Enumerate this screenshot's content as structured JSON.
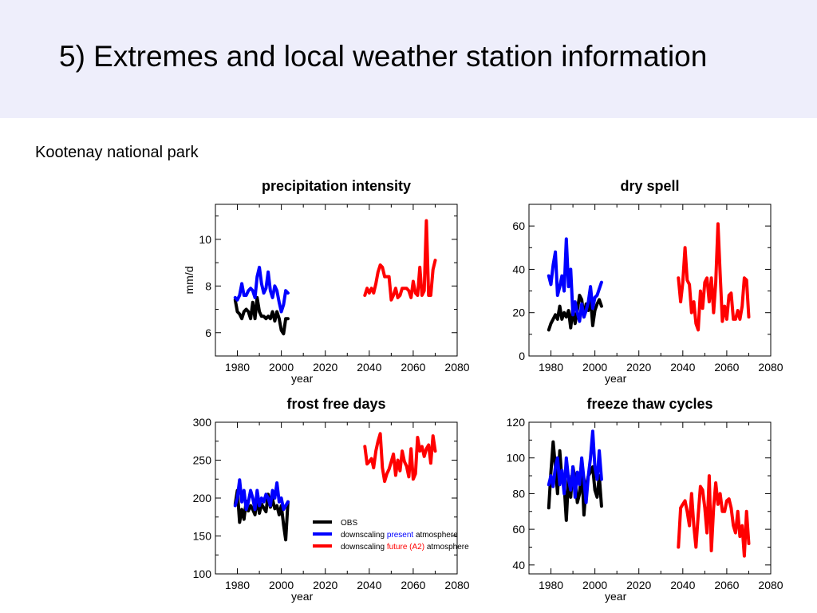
{
  "slide": {
    "title": "5) Extremes and local weather station information",
    "subtitle": "Kootenay national park"
  },
  "colors": {
    "header_bg": "#eeeefb",
    "obs": "#000000",
    "present": "#0000ff",
    "future": "#ff0000"
  },
  "legend": {
    "items": [
      {
        "parts": [
          {
            "text": "OBS",
            "color": "#000000"
          }
        ],
        "color": "#000000"
      },
      {
        "parts": [
          {
            "text": "downscaling ",
            "color": "#000000"
          },
          {
            "text": "present",
            "color": "#0000ff"
          },
          {
            "text": " atmosphere",
            "color": "#000000"
          }
        ],
        "color": "#0000ff"
      },
      {
        "parts": [
          {
            "text": "downscaling ",
            "color": "#000000"
          },
          {
            "text": "future (A2)",
            "color": "#ff0000"
          },
          {
            "text": " atmosphere",
            "color": "#000000"
          }
        ],
        "color": "#ff0000"
      }
    ]
  },
  "chart_data": [
    {
      "type": "line",
      "title": "precipitation intensity",
      "xlabel": "year",
      "ylabel": "mm/d",
      "xlim": [
        1970,
        2080
      ],
      "ylim": [
        5.0,
        11.5
      ],
      "xticks": [
        1980,
        2000,
        2020,
        2040,
        2060,
        2080
      ],
      "yticks": [
        6,
        8,
        10
      ],
      "series": [
        {
          "key": "obs",
          "color": "#000000",
          "x": [
            1979,
            1980,
            1981,
            1982,
            1983,
            1984,
            1985,
            1986,
            1987,
            1988,
            1989,
            1990,
            1991,
            1992,
            1993,
            1994,
            1995,
            1996,
            1997,
            1998,
            1999,
            2000,
            2001,
            2002,
            2003
          ],
          "y": [
            7.4,
            6.9,
            6.8,
            6.6,
            6.9,
            7.0,
            6.9,
            6.6,
            7.3,
            6.6,
            7.5,
            6.9,
            6.7,
            6.7,
            6.6,
            6.7,
            6.6,
            6.9,
            6.5,
            6.9,
            6.6,
            6.1,
            5.95,
            6.6,
            6.6
          ]
        },
        {
          "key": "present",
          "color": "#0000ff",
          "x": [
            1979,
            1980,
            1981,
            1982,
            1983,
            1984,
            1985,
            1986,
            1987,
            1988,
            1989,
            1990,
            1991,
            1992,
            1993,
            1994,
            1995,
            1996,
            1997,
            1998,
            1999,
            2000,
            2001,
            2002,
            2003
          ],
          "y": [
            7.5,
            7.4,
            7.6,
            8.1,
            7.6,
            7.6,
            7.8,
            7.9,
            7.8,
            7.5,
            8.4,
            8.8,
            8.1,
            7.7,
            7.9,
            8.6,
            7.8,
            7.5,
            8.0,
            7.8,
            7.3,
            6.9,
            7.2,
            7.8,
            7.7
          ]
        },
        {
          "key": "future",
          "color": "#ff0000",
          "x": [
            2038,
            2039,
            2040,
            2041,
            2042,
            2043,
            2044,
            2045,
            2046,
            2047,
            2048,
            2049,
            2050,
            2051,
            2052,
            2053,
            2054,
            2055,
            2056,
            2057,
            2058,
            2059,
            2060,
            2061,
            2062,
            2063,
            2064,
            2065,
            2066,
            2067,
            2068,
            2069,
            2070
          ],
          "y": [
            7.6,
            7.9,
            7.7,
            7.9,
            7.7,
            8.1,
            8.6,
            8.9,
            8.8,
            8.4,
            8.4,
            8.4,
            7.4,
            7.6,
            7.9,
            7.5,
            7.6,
            7.9,
            7.9,
            7.9,
            7.8,
            7.5,
            8.2,
            7.7,
            7.6,
            8.8,
            7.6,
            7.8,
            10.8,
            7.6,
            7.6,
            8.7,
            9.1
          ]
        }
      ]
    },
    {
      "type": "line",
      "title": "dry spell",
      "xlabel": "year",
      "ylabel": "",
      "xlim": [
        1970,
        2080
      ],
      "ylim": [
        0,
        70
      ],
      "xticks": [
        1980,
        2000,
        2020,
        2040,
        2060,
        2080
      ],
      "yticks": [
        0,
        20,
        40,
        60
      ],
      "series": [
        {
          "key": "obs",
          "color": "#000000",
          "x": [
            1979,
            1980,
            1981,
            1982,
            1983,
            1984,
            1985,
            1986,
            1987,
            1988,
            1989,
            1990,
            1991,
            1992,
            1993,
            1994,
            1995,
            1996,
            1997,
            1998,
            1999,
            2000,
            2001,
            2002,
            2003
          ],
          "y": [
            12,
            15,
            17,
            19,
            17,
            23,
            17,
            20,
            18,
            21,
            13,
            22,
            15,
            21,
            28,
            26,
            18,
            24,
            21,
            27,
            14,
            21,
            24,
            26,
            23
          ]
        },
        {
          "key": "present",
          "color": "#0000ff",
          "x": [
            1979,
            1980,
            1981,
            1982,
            1983,
            1984,
            1985,
            1986,
            1987,
            1988,
            1989,
            1990,
            1991,
            1992,
            1993,
            1994,
            1995,
            1996,
            1997,
            1998,
            1999,
            2000,
            2001,
            2002,
            2003
          ],
          "y": [
            37,
            33,
            42,
            48,
            28,
            32,
            37,
            30,
            54,
            32,
            40,
            19,
            25,
            20,
            16,
            24,
            18,
            21,
            25,
            32,
            22,
            27,
            28,
            31,
            34
          ]
        },
        {
          "key": "future",
          "color": "#ff0000",
          "x": [
            2038,
            2039,
            2040,
            2041,
            2042,
            2043,
            2044,
            2045,
            2046,
            2047,
            2048,
            2049,
            2050,
            2051,
            2052,
            2053,
            2054,
            2055,
            2056,
            2057,
            2058,
            2059,
            2060,
            2061,
            2062,
            2063,
            2064,
            2065,
            2066,
            2067,
            2068,
            2069,
            2070
          ],
          "y": [
            36,
            25,
            34,
            50,
            35,
            33,
            20,
            25,
            15,
            12,
            30,
            22,
            34,
            36,
            25,
            36,
            20,
            34,
            61,
            38,
            16,
            23,
            17,
            28,
            29,
            17,
            17,
            21,
            17,
            23,
            36,
            35,
            18
          ]
        }
      ]
    },
    {
      "type": "line",
      "title": "frost free days",
      "xlabel": "year",
      "ylabel": "",
      "xlim": [
        1970,
        2080
      ],
      "ylim": [
        100,
        300
      ],
      "xticks": [
        1980,
        2000,
        2020,
        2040,
        2060,
        2080
      ],
      "yticks": [
        100,
        150,
        200,
        250,
        300
      ],
      "series": [
        {
          "key": "obs",
          "color": "#000000",
          "x": [
            1979,
            1980,
            1981,
            1982,
            1983,
            1984,
            1985,
            1986,
            1987,
            1988,
            1989,
            1990,
            1991,
            1992,
            1993,
            1994,
            1995,
            1996,
            1997,
            1998,
            1999,
            2000,
            2001,
            2002,
            2003
          ],
          "y": [
            192,
            210,
            168,
            185,
            172,
            196,
            183,
            190,
            185,
            178,
            200,
            180,
            192,
            187,
            182,
            205,
            188,
            198,
            186,
            190,
            178,
            190,
            165,
            145,
            195
          ]
        },
        {
          "key": "present",
          "color": "#0000ff",
          "x": [
            1979,
            1980,
            1981,
            1982,
            1983,
            1984,
            1985,
            1986,
            1987,
            1988,
            1989,
            1990,
            1991,
            1992,
            1993,
            1994,
            1995,
            1996,
            1997,
            1998,
            1999,
            2000,
            2001,
            2002,
            2003
          ],
          "y": [
            190,
            200,
            224,
            195,
            210,
            185,
            195,
            210,
            200,
            185,
            210,
            190,
            200,
            195,
            205,
            200,
            190,
            210,
            200,
            220,
            195,
            200,
            185,
            190,
            195
          ]
        },
        {
          "key": "future",
          "color": "#ff0000",
          "x": [
            2038,
            2039,
            2040,
            2041,
            2042,
            2043,
            2044,
            2045,
            2046,
            2047,
            2048,
            2049,
            2050,
            2051,
            2052,
            2053,
            2054,
            2055,
            2056,
            2057,
            2058,
            2059,
            2060,
            2061,
            2062,
            2063,
            2064,
            2065,
            2066,
            2067,
            2068,
            2069,
            2070
          ],
          "y": [
            268,
            245,
            248,
            252,
            240,
            262,
            275,
            285,
            240,
            222,
            232,
            238,
            248,
            258,
            230,
            250,
            236,
            262,
            248,
            242,
            228,
            265,
            225,
            232,
            280,
            262,
            268,
            255,
            265,
            270,
            246,
            282,
            262
          ]
        }
      ]
    },
    {
      "type": "line",
      "title": "freeze thaw cycles",
      "xlabel": "year",
      "ylabel": "",
      "xlim": [
        1970,
        2080
      ],
      "ylim": [
        35,
        120
      ],
      "xticks": [
        1980,
        2000,
        2020,
        2040,
        2060,
        2080
      ],
      "yticks": [
        40,
        60,
        80,
        100,
        120
      ],
      "series": [
        {
          "key": "obs",
          "color": "#000000",
          "x": [
            1979,
            1980,
            1981,
            1982,
            1983,
            1984,
            1985,
            1986,
            1987,
            1988,
            1989,
            1990,
            1991,
            1992,
            1993,
            1994,
            1995,
            1996,
            1997,
            1998,
            1999,
            2000,
            2001,
            2002,
            2003
          ],
          "y": [
            72,
            92,
            109,
            95,
            80,
            104,
            88,
            85,
            65,
            90,
            78,
            95,
            88,
            75,
            80,
            95,
            68,
            84,
            90,
            92,
            95,
            82,
            78,
            90,
            73
          ]
        },
        {
          "key": "present",
          "color": "#0000ff",
          "x": [
            1979,
            1980,
            1981,
            1982,
            1983,
            1984,
            1985,
            1986,
            1987,
            1988,
            1989,
            1990,
            1991,
            1992,
            1993,
            1994,
            1995,
            1996,
            1997,
            1998,
            1999,
            2000,
            2001,
            2002,
            2003
          ],
          "y": [
            85,
            90,
            84,
            95,
            100,
            85,
            93,
            80,
            100,
            88,
            82,
            95,
            78,
            92,
            85,
            100,
            88,
            75,
            90,
            100,
            115,
            95,
            88,
            104,
            88
          ]
        },
        {
          "key": "future",
          "color": "#ff0000",
          "x": [
            2038,
            2039,
            2040,
            2041,
            2042,
            2043,
            2044,
            2045,
            2046,
            2047,
            2048,
            2049,
            2050,
            2051,
            2052,
            2053,
            2054,
            2055,
            2056,
            2057,
            2058,
            2059,
            2060,
            2061,
            2062,
            2063,
            2064,
            2065,
            2066,
            2067,
            2068,
            2069,
            2070
          ],
          "y": [
            50,
            72,
            74,
            76,
            70,
            62,
            80,
            62,
            50,
            68,
            84,
            82,
            72,
            58,
            90,
            48,
            72,
            86,
            74,
            80,
            70,
            70,
            76,
            77,
            72,
            62,
            58,
            70,
            56,
            62,
            45,
            70,
            52
          ]
        }
      ]
    }
  ]
}
